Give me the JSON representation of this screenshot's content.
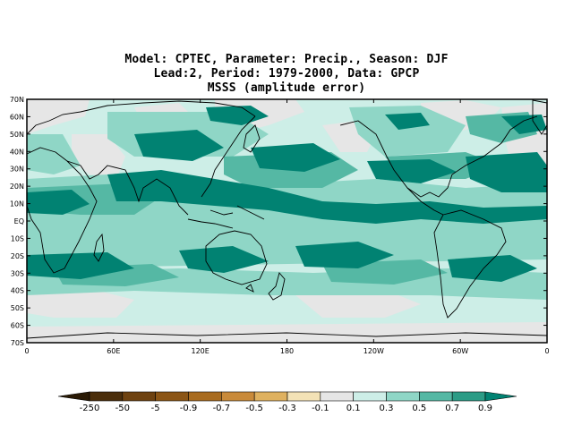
{
  "title": {
    "line1": "Model: CPTEC, Parameter: Precip., Season: DJF",
    "line2": "Lead:2, Period: 1979-2000, Data: GPCP",
    "line3": "MSSS (amplitude error)"
  },
  "axes": {
    "lat_ticks": [
      "70N",
      "60N",
      "50N",
      "40N",
      "30N",
      "20N",
      "10N",
      "EQ",
      "10S",
      "20S",
      "30S",
      "40S",
      "50S",
      "60S",
      "70S"
    ],
    "lon_ticks": [
      "0",
      "60E",
      "120E",
      "180",
      "120W",
      "60W",
      "0"
    ]
  },
  "colorbar": {
    "labels": [
      "-250",
      "-50",
      "-5",
      "-0.9",
      "-0.7",
      "-0.5",
      "-0.3",
      "-0.1",
      "0.1",
      "0.3",
      "0.5",
      "0.7",
      "0.9"
    ],
    "colors": [
      "#2a1a05",
      "#4b2e0b",
      "#6e4210",
      "#8b5515",
      "#a86b1f",
      "#c98a3a",
      "#dfb15f",
      "#f3e2b6",
      "#e6e6e6",
      "#cdeee7",
      "#8fd6c6",
      "#55b8a4",
      "#2b9c86",
      "#018272"
    ]
  },
  "map": {
    "field": "MSSS amplitude error",
    "levels_colors": {
      "neg": "#e6e6e6",
      "low": "#cdeee7",
      "mid": "#8fd6c6",
      "hi": "#55b8a4",
      "top": "#018272"
    }
  }
}
